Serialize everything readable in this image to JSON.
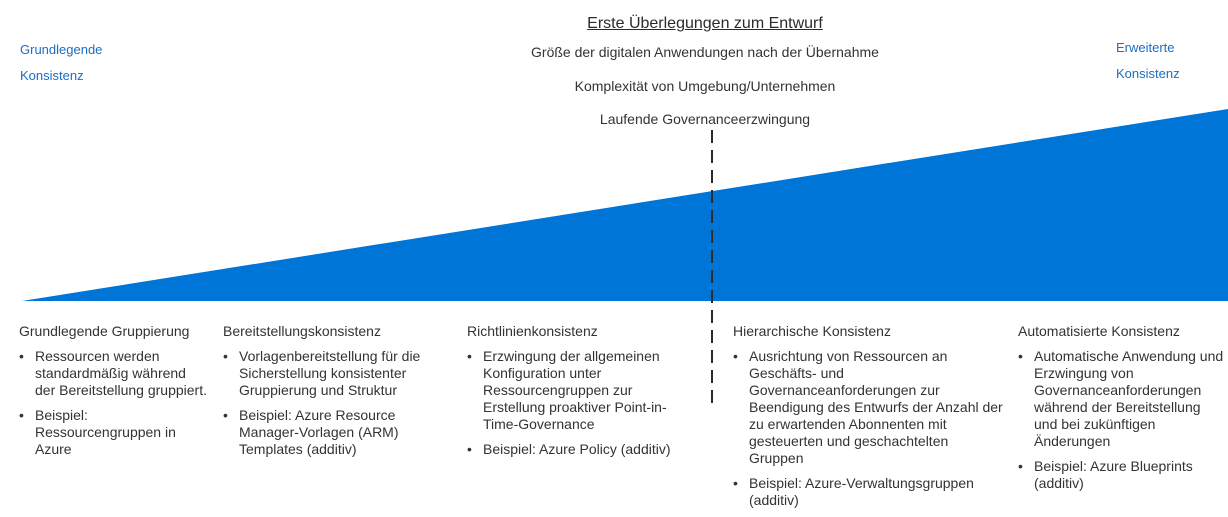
{
  "colors": {
    "wedge": "#0075d8",
    "corner_text": "#1b6ec2",
    "divider": "#2b2b2b"
  },
  "header": {
    "title": "Erste Überlegungen zum Entwurf",
    "factors": [
      "Größe der digitalen Anwendungen nach der Übernahme",
      "Komplexität von Umgebung/Unternehmen",
      "Laufende Governanceerzwingung"
    ]
  },
  "corners": {
    "left": [
      "Grundlegende",
      "Konsistenz"
    ],
    "right": [
      "Erweiterte",
      "Konsistenz"
    ]
  },
  "columns": [
    {
      "title": "Grundlegende Gruppierung",
      "bullets": [
        "Ressourcen werden standardmäßig während der Bereitstellung gruppiert.",
        "Beispiel: Ressourcengruppen in Azure"
      ]
    },
    {
      "title": "Bereitstellungskonsistenz",
      "bullets": [
        "Vorlagenbereitstellung für die Sicherstellung konsistenter Gruppierung und Struktur",
        "Beispiel: Azure Resource Manager-Vorlagen (ARM) Templates (additiv)"
      ]
    },
    {
      "title": "Richtlinienkonsistenz",
      "bullets": [
        "Erzwingung der allgemeinen Konfiguration unter Ressourcengruppen zur Erstellung proaktiver Point-in-Time-Governance",
        "Beispiel: Azure Policy (additiv)"
      ]
    },
    {
      "title": "Hierarchische Konsistenz",
      "bullets": [
        "Ausrichtung von Ressourcen an Geschäfts- und Governanceanforderungen zur Beendigung des Entwurfs der Anzahl der zu erwartenden Abonnenten mit gesteuerten und geschachtelten Gruppen",
        "Beispiel: Azure-Verwaltungsgruppen (additiv)"
      ]
    },
    {
      "title": "Automatisierte Konsistenz",
      "bullets": [
        "Automatische Anwendung und Erzwingung von Governanceanforderungen während der Bereitstellung und bei zukünftigen Änderungen",
        "Beispiel: Azure Blueprints (additiv)"
      ]
    }
  ]
}
